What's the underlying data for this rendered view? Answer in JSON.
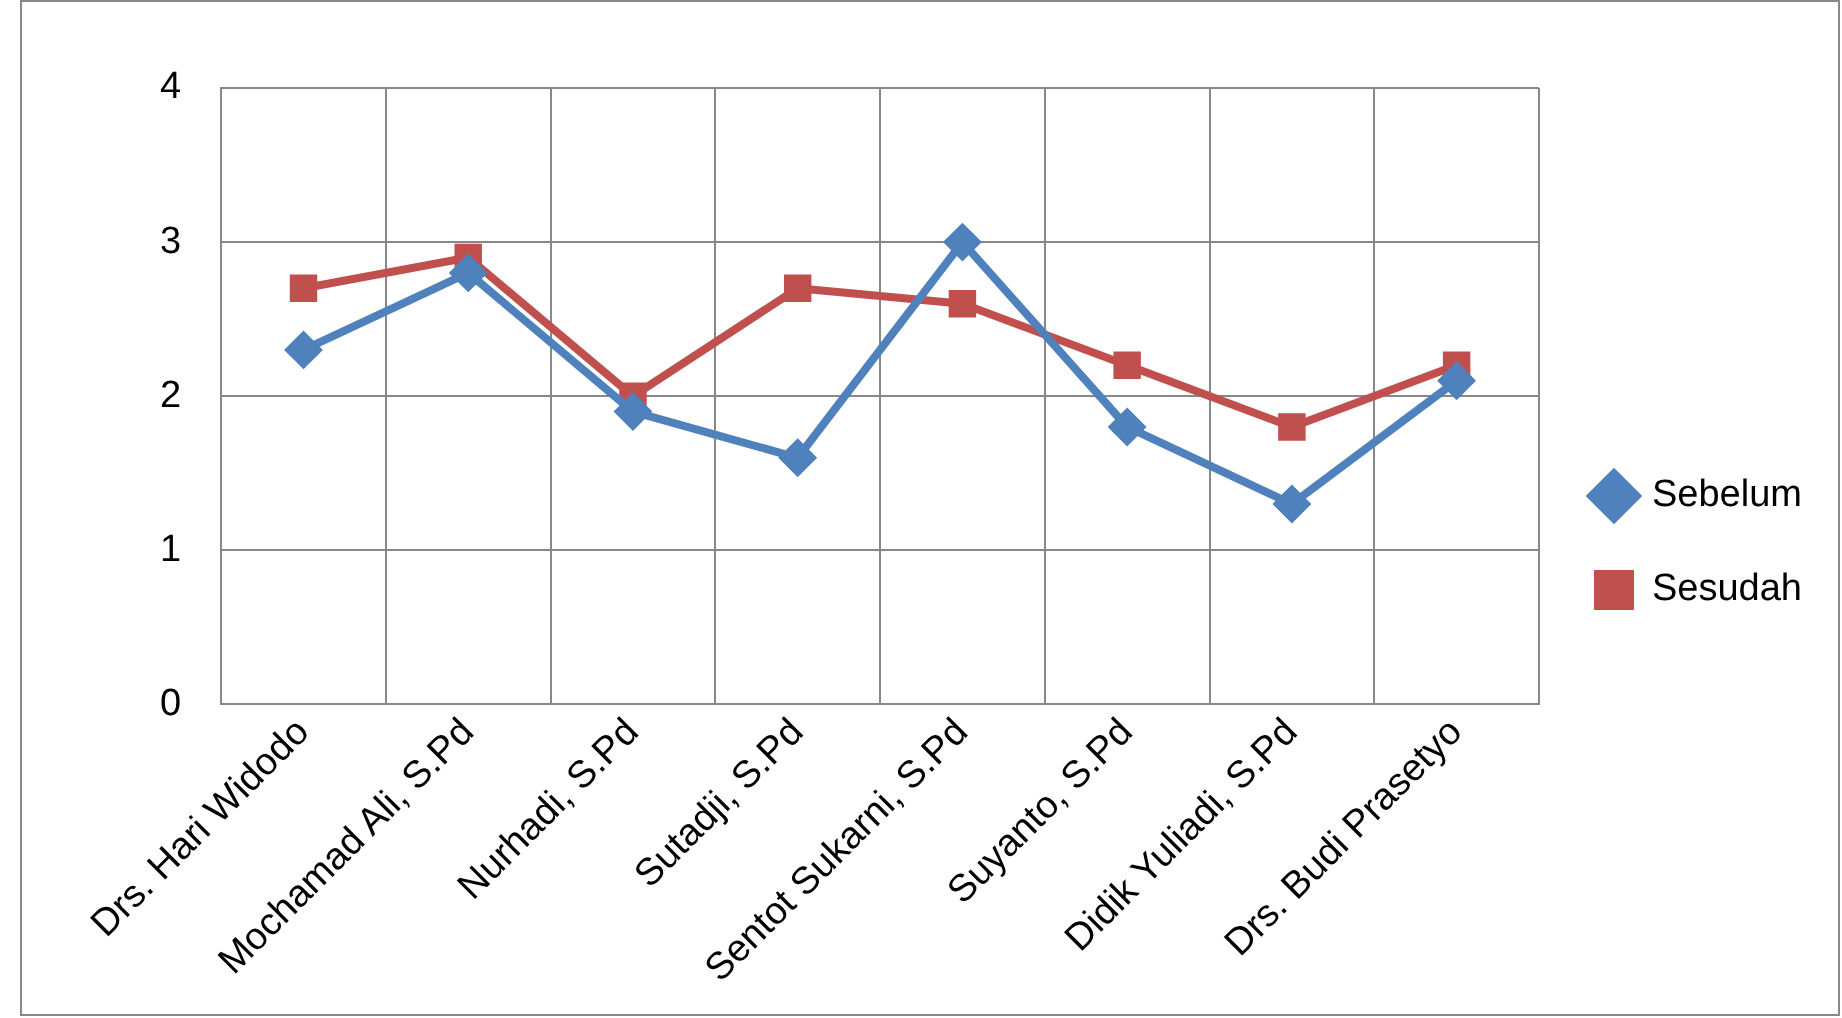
{
  "chart_data": {
    "type": "line",
    "categories": [
      "Drs. Hari Widodo",
      "Mochamad Ali, S.Pd",
      "Nurhadi, S.Pd",
      "Sutadji, S.Pd",
      "Sentot Sukarni, S.Pd",
      "Suyanto, S.Pd",
      "Didik Yuliadi, S.Pd",
      "Drs. Budi Prasetyo"
    ],
    "series": [
      {
        "name": "Sebelum",
        "color": "#4f81bd",
        "marker": "diamond",
        "values": [
          2.3,
          2.8,
          1.9,
          1.6,
          3.0,
          1.8,
          1.3,
          2.1
        ]
      },
      {
        "name": "Sesudah",
        "color": "#c0504d",
        "marker": "square",
        "values": [
          2.7,
          2.9,
          2.0,
          2.7,
          2.6,
          2.2,
          1.8,
          2.2
        ]
      }
    ],
    "ylim": [
      0,
      4
    ],
    "yticks": [
      0,
      1,
      2,
      3,
      4
    ],
    "grid": true,
    "legend": "right"
  }
}
